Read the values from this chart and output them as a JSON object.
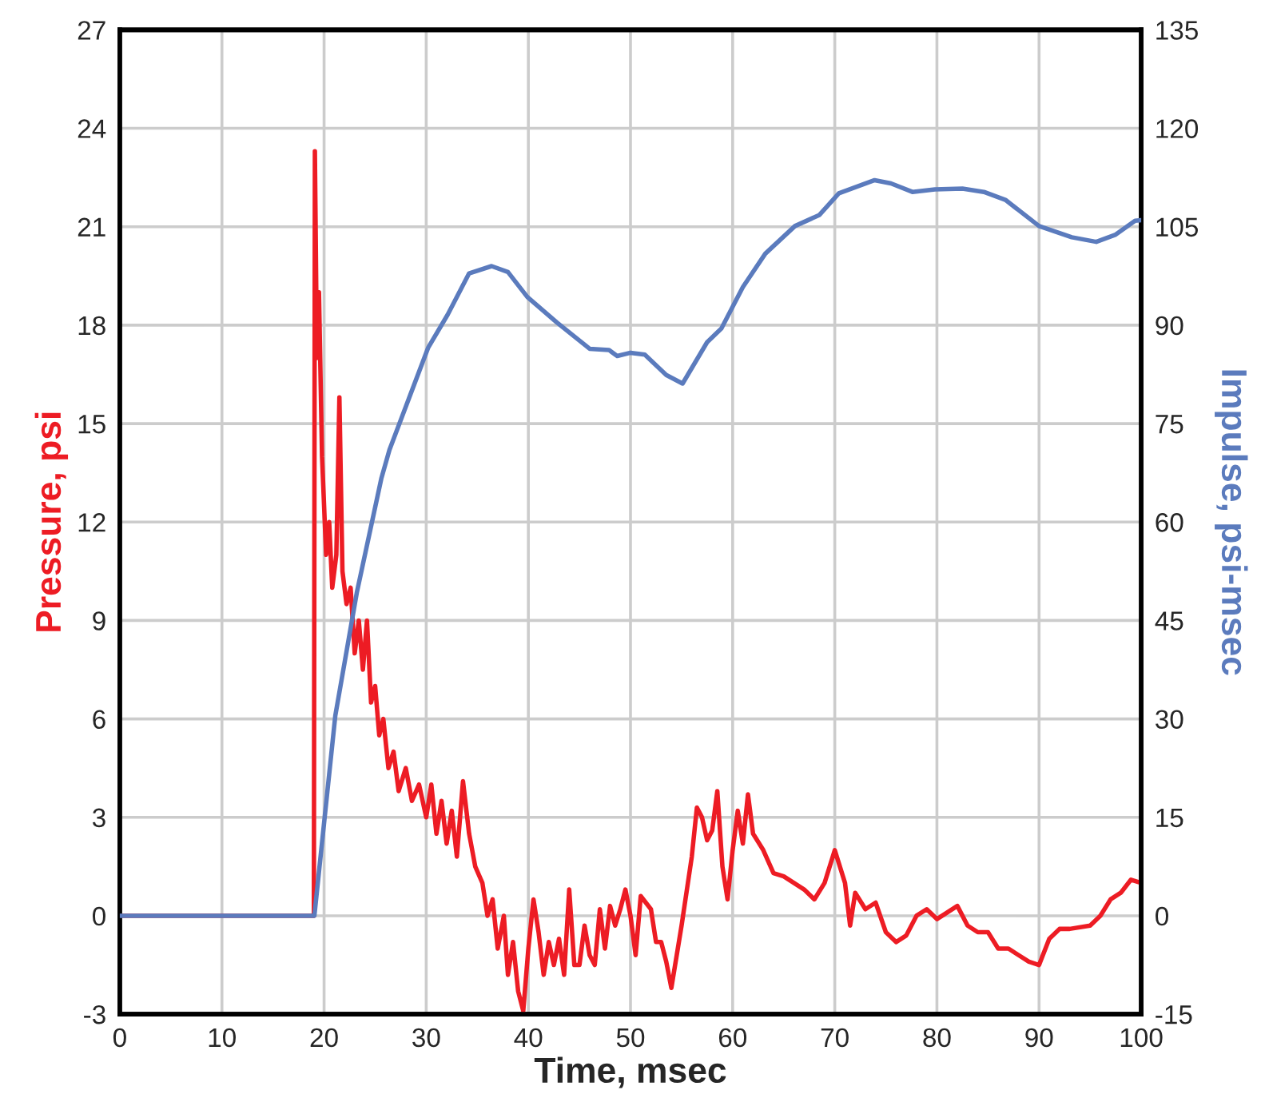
{
  "chart_data": {
    "type": "line",
    "xlabel": "Time, msec",
    "ylabel": "Pressure, psi",
    "y2label": "Impulse, psi-msec",
    "series": [
      {
        "color": "#ed1c24",
        "x": [
          0,
          19,
          19.1,
          19.3,
          19.5,
          19.8,
          20.2,
          20.5,
          20.8,
          21.2,
          21.5,
          21.8,
          22.2,
          22.6,
          23,
          23.4,
          23.8,
          24.2,
          24.6,
          25,
          25.4,
          25.8,
          26.3,
          26.8,
          27.3,
          28,
          28.6,
          29.3,
          30,
          30.5,
          31,
          31.5,
          32,
          32.5,
          33,
          33.6,
          34.2,
          34.8,
          35.5,
          36,
          36.5,
          37,
          37.6,
          38,
          38.5,
          39,
          39.5,
          40,
          40.5,
          41,
          41.5,
          42,
          42.5,
          43,
          43.5,
          44,
          44.5,
          45,
          45.5,
          46,
          46.5,
          47,
          47.5,
          48,
          48.5,
          49,
          49.5,
          50,
          50.5,
          51,
          51.5,
          52,
          52.5,
          53,
          53.5,
          54,
          55,
          56,
          56.5,
          57,
          57.5,
          58,
          58.5,
          59,
          59.5,
          60,
          60.5,
          61,
          61.5,
          62,
          63,
          64,
          65,
          66,
          67,
          68,
          69,
          70,
          71,
          71.5,
          72,
          73,
          74,
          75,
          76,
          77,
          78,
          79,
          80,
          81,
          82,
          83,
          84,
          85,
          86,
          87,
          88,
          89,
          90,
          91,
          92,
          93,
          95,
          96,
          97,
          98,
          99,
          100
        ],
        "values": [
          0,
          0,
          23.3,
          17,
          19,
          14,
          11,
          12,
          10,
          11,
          15.8,
          10.5,
          9.5,
          10,
          8,
          9,
          7.5,
          9,
          6.5,
          7,
          5.5,
          6,
          4.5,
          5,
          3.8,
          4.5,
          3.5,
          4,
          3,
          4,
          2.5,
          3.5,
          2.2,
          3.2,
          1.8,
          4.1,
          2.5,
          1.5,
          1,
          0,
          0.5,
          -1,
          0,
          -1.8,
          -0.8,
          -2.3,
          -2.9,
          -1,
          0.5,
          -0.5,
          -1.8,
          -0.8,
          -1.5,
          -0.7,
          -1.8,
          0.8,
          -1.5,
          -1.5,
          -0.3,
          -1.2,
          -1.5,
          0.2,
          -1,
          0.3,
          -0.3,
          0.2,
          0.8,
          0,
          -1.2,
          0.6,
          0.4,
          0.2,
          -0.8,
          -0.8,
          -1.4,
          -2.2,
          -0.3,
          1.8,
          3.3,
          3,
          2.3,
          2.6,
          3.8,
          1.5,
          0.5,
          2,
          3.2,
          2.2,
          3.7,
          2.5,
          2,
          1.3,
          1.2,
          1,
          0.8,
          0.5,
          1,
          2,
          1,
          -0.3,
          0.7,
          0.2,
          0.4,
          -0.5,
          -0.8,
          -0.6,
          0,
          0.2,
          -0.1,
          0.1,
          0.3,
          -0.3,
          -0.5,
          -0.5,
          -1,
          -1,
          -1.2,
          -1.4,
          -1.5,
          -0.7,
          -0.4,
          -0.4,
          -0.3,
          0,
          0.5,
          0.7,
          1.1,
          1.0
        ]
      },
      {
        "color": "#5b7bbd",
        "axis": "y2",
        "x": [
          0,
          19,
          19.05,
          21.1,
          23.2,
          25.6,
          26.4,
          30.2,
          32.1,
          34.2,
          36.4,
          38,
          39.9,
          42.8,
          46,
          47.9,
          48.7,
          50,
          51.4,
          53.5,
          55.1,
          57.5,
          58.9,
          61,
          63.2,
          66.1,
          68.5,
          70.4,
          73.9,
          75.5,
          77.6,
          79.8,
          82.5,
          84.6,
          86.7,
          90,
          93.2,
          95.6,
          97.5,
          99.4,
          100
        ],
        "values": [
          0,
          0,
          0,
          30.5,
          49.2,
          66.6,
          71,
          86.6,
          91.6,
          97.9,
          99,
          98.1,
          94.3,
          90.4,
          86.4,
          86.2,
          85.3,
          85.8,
          85.5,
          82.4,
          81.1,
          87.4,
          89.5,
          95.8,
          100.9,
          105.1,
          106.8,
          110.1,
          112.1,
          111.6,
          110.3,
          110.7,
          110.8,
          110.3,
          109.1,
          105.1,
          103.4,
          102.7,
          103.8,
          105.9,
          106
        ]
      }
    ],
    "xlim": [
      0,
      100
    ],
    "xticks": [
      0,
      10,
      20,
      30,
      40,
      50,
      60,
      70,
      80,
      90,
      100
    ],
    "ylim": [
      -3,
      27
    ],
    "yticks": [
      -3,
      0,
      3,
      6,
      9,
      12,
      15,
      18,
      21,
      24,
      27
    ],
    "y2lim": [
      -15,
      135
    ],
    "y2ticks": [
      -15,
      0,
      15,
      30,
      45,
      60,
      75,
      90,
      105,
      120,
      135
    ],
    "grid": true,
    "legend": false
  }
}
